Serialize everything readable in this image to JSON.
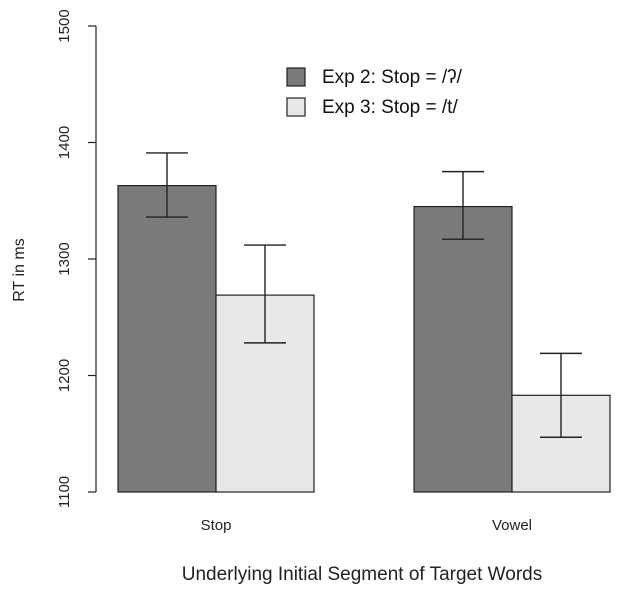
{
  "chart_data": {
    "type": "bar",
    "categories": [
      "Stop",
      "Vowel"
    ],
    "series": [
      {
        "name": "Exp 2: Stop = /ʔ/",
        "values": [
          1363,
          1345
        ],
        "error_low": [
          1336,
          1317
        ],
        "error_high": [
          1391,
          1375
        ],
        "color": "#7a7a7a"
      },
      {
        "name": "Exp 3: Stop = /t/",
        "values": [
          1269,
          1183
        ],
        "error_low": [
          1228,
          1147
        ],
        "error_high": [
          1312,
          1219
        ],
        "color": "#e8e8e8"
      }
    ],
    "xlabel": "Underlying Initial Segment of Target Words",
    "ylabel": "RT in ms",
    "ylim": [
      1100,
      1500
    ],
    "yticks": [
      "1100",
      "1200",
      "1300",
      "1400",
      "1500"
    ],
    "grid": false,
    "legend_position": "top-center"
  }
}
